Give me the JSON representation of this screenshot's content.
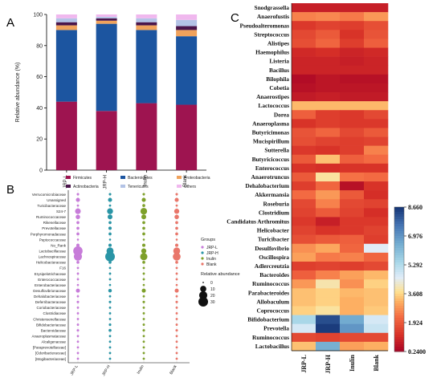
{
  "panels": {
    "a": "A",
    "b": "B",
    "c": "C"
  },
  "chart_data": [
    {
      "type": "bar",
      "stacked": true,
      "panel": "A",
      "categories": [
        "JRP-L",
        "JRP-H",
        "Inulin",
        "Blank"
      ],
      "ylabel": "Relative abundance (%)",
      "ylim": [
        0,
        100
      ],
      "yticks": [
        "0",
        "20",
        "40",
        "60",
        "80",
        "100"
      ],
      "series": [
        {
          "name": "Firmicutes",
          "color": "#9e1450",
          "values": [
            44,
            38,
            43,
            42
          ]
        },
        {
          "name": "Bacteroidetes",
          "color": "#1c55a0",
          "values": [
            46,
            56,
            47,
            44
          ]
        },
        {
          "name": "Proteobacteria",
          "color": "#f0a25c",
          "values": [
            3,
            2,
            3,
            4
          ]
        },
        {
          "name": "Actinobacteria",
          "color": "#4a154b",
          "values": [
            2,
            1.5,
            2,
            2.5
          ]
        },
        {
          "name": "Tenericutes",
          "color": "#b3c3e6",
          "values": [
            2.5,
            1,
            2.5,
            4
          ]
        },
        {
          "name": "Others",
          "color": "#f0b8ee",
          "values": [
            2.5,
            1.5,
            2.5,
            3.5
          ]
        }
      ],
      "legend_position": "bottom"
    },
    {
      "type": "scatter",
      "panel": "B",
      "categories": [
        "JRP-L",
        "JRP-H",
        "Inulin",
        "Blank"
      ],
      "rows": [
        "Verrucomicrobiaceae",
        "Unassigned",
        "Turicibacteraceae",
        "S24-7",
        "Ruminococcaceae",
        "Rikenellaceae",
        "Prevotellaceae",
        "Porphyromonadaceae",
        "Peptococcaceae",
        "No_Rank",
        "Lactobacillaceae",
        "Lachnospiraceae",
        "Helicobacteraceae",
        "F16",
        "Erysipelotrichaceae",
        "Enterococcaceae",
        "Enterobacteriaceae",
        "Desulfovibrionaceae",
        "Dehalobacteriaceae",
        "Deferribacteraceae",
        "Coriobacteriaceae",
        "Clostridiaceae",
        "Christensenellaceae",
        "Bifidobacteriaceae",
        "Bacteroidaceae",
        "Anaeroplasmataceae",
        "Alcaligenaceae",
        "[Paraprevotellaceae]",
        "[Odoribacteraceae]",
        "[Mogibacteriaceae]"
      ],
      "colors": {
        "JRP-L": "#c77cd9",
        "JRP-H": "#2a95a6",
        "Inulin": "#7ea02a",
        "Blank": "#e9776b"
      },
      "values": [
        [
          0.5,
          0.5,
          0.5,
          0.5
        ],
        [
          3,
          3,
          3,
          3
        ],
        [
          0.3,
          0.3,
          1,
          0.3
        ],
        [
          8,
          9,
          12,
          6
        ],
        [
          4,
          5,
          5,
          4
        ],
        [
          1,
          1,
          1,
          1
        ],
        [
          1,
          1.5,
          1,
          1
        ],
        [
          1,
          1,
          1,
          1
        ],
        [
          0.2,
          0.2,
          0.2,
          0.2
        ],
        [
          1.5,
          1.5,
          1.5,
          1.5
        ],
        [
          28,
          14,
          6,
          13
        ],
        [
          20,
          30,
          15,
          18
        ],
        [
          1,
          1,
          1,
          1
        ],
        [
          0.3,
          0.3,
          0.3,
          0.3
        ],
        [
          0.3,
          0.3,
          0.3,
          0.3
        ],
        [
          0.3,
          0.3,
          0.3,
          0.3
        ],
        [
          0.2,
          0.2,
          0.2,
          0.2
        ],
        [
          3,
          2,
          3,
          3
        ],
        [
          0.3,
          0.3,
          0.3,
          0.3
        ],
        [
          0.5,
          0.5,
          0.5,
          0.5
        ],
        [
          0.3,
          0.3,
          0.3,
          0.3
        ],
        [
          0.3,
          0.3,
          0.3,
          0.3
        ],
        [
          0.3,
          0.3,
          0.3,
          0.3
        ],
        [
          0.3,
          0.5,
          0.3,
          0.3
        ],
        [
          0.5,
          1,
          0.5,
          0.5
        ],
        [
          0.3,
          0.3,
          0.3,
          0.3
        ],
        [
          0.3,
          0.3,
          0.3,
          0.3
        ],
        [
          0.3,
          0.3,
          0.3,
          0.3
        ],
        [
          0.3,
          0.3,
          0.3,
          0.3
        ],
        [
          0.3,
          0.3,
          0.3,
          0.3
        ]
      ],
      "legend_groups_title": "Groups",
      "legend_size_title": "Relative abundance",
      "size_legend": [
        0,
        10,
        20,
        30
      ]
    },
    {
      "type": "heatmap",
      "panel": "C",
      "categories": [
        "JRP-L",
        "JRP-H",
        "Inulin",
        "Blank"
      ],
      "rows": [
        "Snodgrassella",
        "Anaerofustis",
        "Pseudoalteromonas",
        "Streptococcus",
        "Alistipes",
        "Haemophilus",
        "Listeria",
        "Bacillus",
        "Bilophila",
        "Cobetia",
        "Anaerostipes",
        "Lactococcus",
        "Dorea",
        "Anaeroplasma",
        "Butyricimonas",
        "Mucispirillum",
        "Sutterella",
        "Butyricicoccus",
        "Enterococcus",
        "Anaerotruncus",
        "Dehalobacterium",
        "Akkermansia",
        "Roseburia",
        "Clostridium",
        "Candidatus Arthromitus",
        "Helicobacter",
        "Turicibacter",
        "Desulfovibrio",
        "Oscillospira",
        "Adlercreutzia",
        "Bacteroides",
        "Ruminococcus",
        "Parabacteroides",
        "Allobaculum",
        "Coprococcus",
        "Bifidobacterium",
        "Prevotella",
        "Ruminococcus",
        "Lactobacillus"
      ],
      "values": [
        [
          0.9,
          0.9,
          0.9,
          0.9
        ],
        [
          2.6,
          2.7,
          2.5,
          2.9
        ],
        [
          1.4,
          1.6,
          1.5,
          1.8
        ],
        [
          1.7,
          2.0,
          1.3,
          1.9
        ],
        [
          1.8,
          2.2,
          1.5,
          2.1
        ],
        [
          1.1,
          1.2,
          1.0,
          1.1
        ],
        [
          1.0,
          1.0,
          0.9,
          1.0
        ],
        [
          1.0,
          1.0,
          1.0,
          1.0
        ],
        [
          0.5,
          0.7,
          0.6,
          0.6
        ],
        [
          0.6,
          0.7,
          0.7,
          0.7
        ],
        [
          0.8,
          0.9,
          0.8,
          0.8
        ],
        [
          3.3,
          3.3,
          3.3,
          3.3
        ],
        [
          2.1,
          1.5,
          1.4,
          1.7
        ],
        [
          1.3,
          1.5,
          1.4,
          1.4
        ],
        [
          1.9,
          2.2,
          1.7,
          2.0
        ],
        [
          1.8,
          1.6,
          1.5,
          1.6
        ],
        [
          1.4,
          1.3,
          1.5,
          2.6
        ],
        [
          2.0,
          3.4,
          2.1,
          2.3
        ],
        [
          1.3,
          1.2,
          1.3,
          1.3
        ],
        [
          2.0,
          3.9,
          2.4,
          2.3
        ],
        [
          1.5,
          2.2,
          0.6,
          1.3
        ],
        [
          2.3,
          2.9,
          2.0,
          1.2
        ],
        [
          1.7,
          2.6,
          1.7,
          1.6
        ],
        [
          1.6,
          2.0,
          1.6,
          1.2
        ],
        [
          1.4,
          0.9,
          1.4,
          1.4
        ],
        [
          1.6,
          1.3,
          1.4,
          1.6
        ],
        [
          1.8,
          2.0,
          2.1,
          1.5
        ],
        [
          2.8,
          3.1,
          2.2,
          4.6
        ],
        [
          3.0,
          2.5,
          2.6,
          2.2
        ],
        [
          1.5,
          1.6,
          1.5,
          1.7
        ],
        [
          2.1,
          2.6,
          3.0,
          3.3
        ],
        [
          2.9,
          4.0,
          2.8,
          3.6
        ],
        [
          3.4,
          3.6,
          3.3,
          3.4
        ],
        [
          3.4,
          3.6,
          3.2,
          3.4
        ],
        [
          3.6,
          3.9,
          3.2,
          3.5
        ],
        [
          5.5,
          8.3,
          6.6,
          4.8
        ],
        [
          4.8,
          8.6,
          7.0,
          5.0
        ],
        [
          1.7,
          1.6,
          1.7,
          1.7
        ],
        [
          3.4,
          6.5,
          3.0,
          3.2
        ]
      ],
      "colorbar_ticks": [
        "8.660",
        "6.976",
        "5.292",
        "3.608",
        "1.924",
        "0.2400"
      ],
      "vmin": 0.24,
      "vmax": 8.66
    }
  ]
}
